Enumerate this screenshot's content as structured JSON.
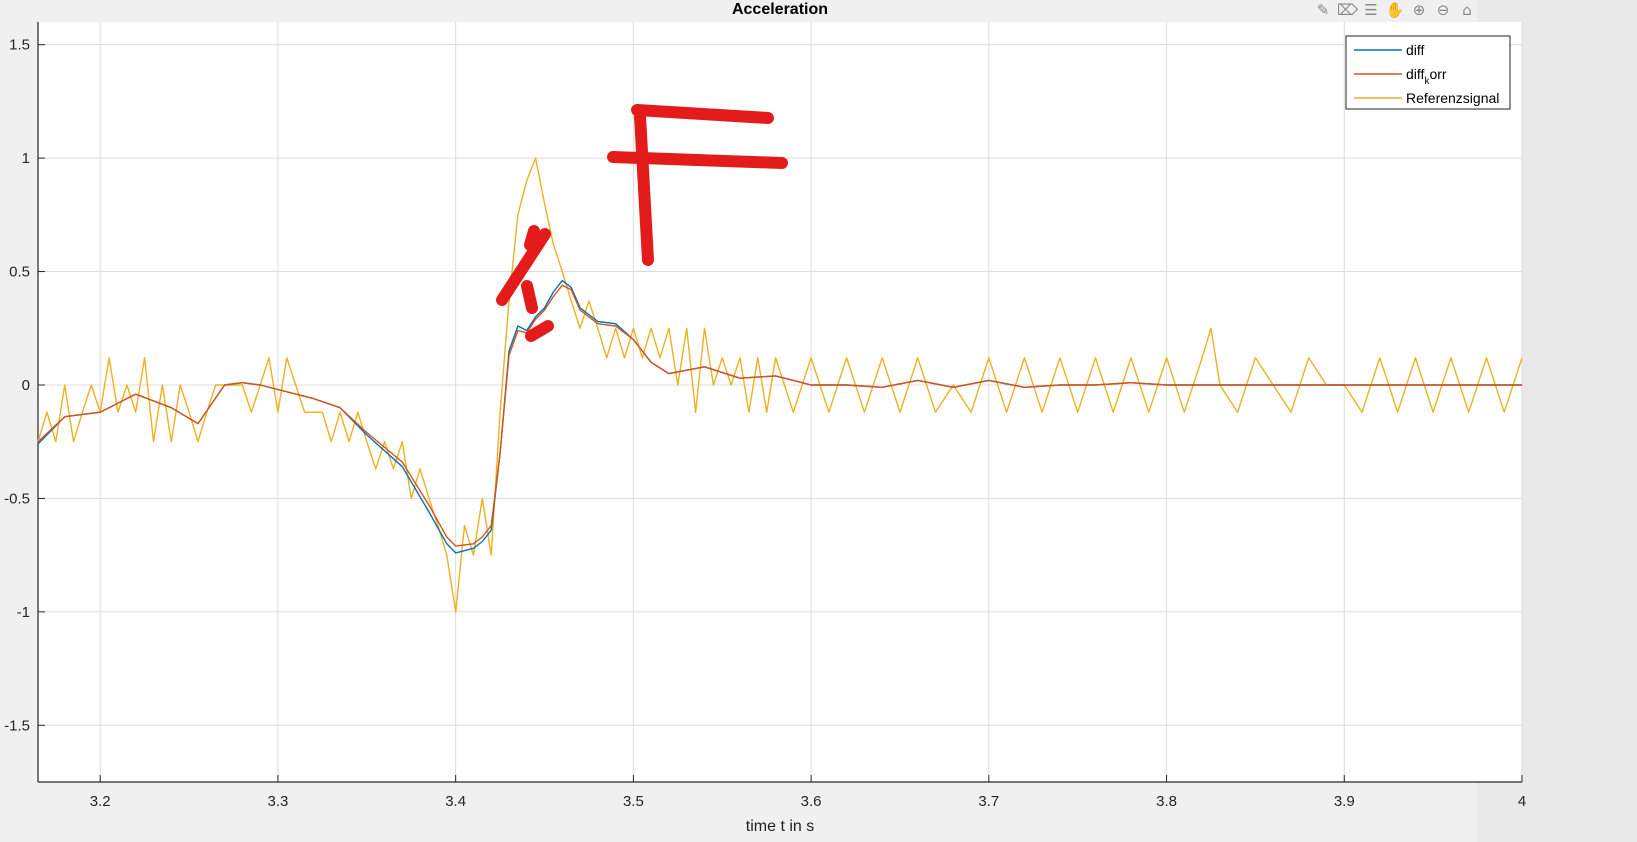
{
  "figure": {
    "toolbar": [
      {
        "name": "edit-plot-icon",
        "glyph": "✎"
      },
      {
        "name": "brush-icon",
        "glyph": "⌦"
      },
      {
        "name": "data-tips-icon",
        "glyph": "☰"
      },
      {
        "name": "pan-icon",
        "glyph": "✋"
      },
      {
        "name": "zoom-in-icon",
        "glyph": "⊕"
      },
      {
        "name": "zoom-out-icon",
        "glyph": "⊖"
      },
      {
        "name": "home-icon",
        "glyph": "⌂"
      }
    ]
  },
  "chart_data": {
    "type": "line",
    "title": "Acceleration",
    "xlabel": "time t in s",
    "ylabel": "",
    "xlim": [
      3.165,
      4.0
    ],
    "ylim": [
      -1.75,
      1.6
    ],
    "xticks": [
      3.2,
      3.3,
      3.4,
      3.5,
      3.6,
      3.7,
      3.8,
      3.9,
      4.0
    ],
    "xtick_labels": [
      "3.2",
      "3.3",
      "3.4",
      "3.5",
      "3.6",
      "3.7",
      "3.8",
      "3.9",
      "4"
    ],
    "yticks": [
      -1.5,
      -1,
      -0.5,
      0,
      0.5,
      1,
      1.5
    ],
    "ytick_labels": [
      "-1.5",
      "-1",
      "-0.5",
      "0",
      "0.5",
      "1",
      "1.5"
    ],
    "grid": true,
    "legend_position": "top-right",
    "colors": {
      "diff": "#0072BD",
      "diff_korr": "#D95319",
      "ref": "#EDB120",
      "annotation": "#e31b1b"
    },
    "legend": [
      {
        "label": "diff",
        "subscript": "",
        "rest": ""
      },
      {
        "label": "diff",
        "subscript": "k",
        "rest": "orr"
      },
      {
        "label": "Referenzsignal",
        "subscript": "",
        "rest": ""
      }
    ],
    "series": [
      {
        "name": "diff",
        "key": "diff",
        "x": [
          3.165,
          3.18,
          3.2,
          3.22,
          3.24,
          3.255,
          3.27,
          3.28,
          3.29,
          3.3,
          3.31,
          3.32,
          3.335,
          3.35,
          3.37,
          3.385,
          3.395,
          3.4,
          3.41,
          3.415,
          3.42,
          3.425,
          3.43,
          3.435,
          3.44,
          3.445,
          3.45,
          3.455,
          3.46,
          3.465,
          3.47,
          3.48,
          3.49,
          3.5,
          3.51,
          3.52,
          3.54,
          3.56,
          3.58,
          3.6,
          3.62,
          3.64,
          3.66,
          3.68,
          3.7,
          3.72,
          3.74,
          3.76,
          3.78,
          3.8,
          3.85,
          3.9,
          3.95,
          4.0
        ],
        "y": [
          -0.26,
          -0.14,
          -0.12,
          -0.04,
          -0.1,
          -0.17,
          0.0,
          0.01,
          0.0,
          -0.02,
          -0.04,
          -0.06,
          -0.1,
          -0.22,
          -0.36,
          -0.56,
          -0.7,
          -0.74,
          -0.72,
          -0.69,
          -0.64,
          -0.3,
          0.15,
          0.26,
          0.24,
          0.3,
          0.34,
          0.41,
          0.46,
          0.43,
          0.34,
          0.28,
          0.27,
          0.2,
          0.1,
          0.05,
          0.08,
          0.03,
          0.04,
          0.0,
          0.0,
          -0.01,
          0.02,
          -0.01,
          0.02,
          -0.01,
          0.0,
          0.0,
          0.01,
          0.0,
          0.0,
          0.0,
          0.0,
          0.0
        ]
      },
      {
        "name": "diff_korr",
        "key": "diff_korr",
        "x": [
          3.165,
          3.18,
          3.2,
          3.22,
          3.24,
          3.255,
          3.27,
          3.28,
          3.29,
          3.3,
          3.31,
          3.32,
          3.335,
          3.35,
          3.37,
          3.385,
          3.395,
          3.4,
          3.41,
          3.415,
          3.42,
          3.425,
          3.43,
          3.435,
          3.44,
          3.445,
          3.45,
          3.455,
          3.46,
          3.465,
          3.47,
          3.48,
          3.49,
          3.5,
          3.51,
          3.52,
          3.54,
          3.56,
          3.58,
          3.6,
          3.62,
          3.64,
          3.66,
          3.68,
          3.7,
          3.72,
          3.74,
          3.76,
          3.78,
          3.8,
          3.85,
          3.9,
          3.95,
          4.0
        ],
        "y": [
          -0.25,
          -0.14,
          -0.12,
          -0.04,
          -0.1,
          -0.17,
          0.0,
          0.01,
          0.0,
          -0.02,
          -0.04,
          -0.06,
          -0.1,
          -0.21,
          -0.34,
          -0.53,
          -0.67,
          -0.71,
          -0.7,
          -0.67,
          -0.62,
          -0.3,
          0.13,
          0.24,
          0.23,
          0.29,
          0.33,
          0.39,
          0.44,
          0.42,
          0.33,
          0.27,
          0.26,
          0.2,
          0.1,
          0.05,
          0.08,
          0.03,
          0.04,
          0.0,
          0.0,
          -0.01,
          0.02,
          -0.01,
          0.02,
          -0.01,
          0.0,
          0.0,
          0.01,
          0.0,
          0.0,
          0.0,
          0.0,
          0.0
        ]
      },
      {
        "name": "Referenzsignal",
        "key": "ref",
        "x": [
          3.165,
          3.17,
          3.175,
          3.18,
          3.185,
          3.19,
          3.195,
          3.2,
          3.205,
          3.21,
          3.215,
          3.22,
          3.225,
          3.23,
          3.235,
          3.24,
          3.245,
          3.25,
          3.255,
          3.26,
          3.265,
          3.27,
          3.275,
          3.28,
          3.285,
          3.29,
          3.295,
          3.3,
          3.305,
          3.31,
          3.315,
          3.32,
          3.325,
          3.33,
          3.335,
          3.34,
          3.345,
          3.35,
          3.355,
          3.36,
          3.365,
          3.37,
          3.375,
          3.38,
          3.385,
          3.39,
          3.395,
          3.4,
          3.405,
          3.41,
          3.415,
          3.42,
          3.425,
          3.43,
          3.435,
          3.44,
          3.445,
          3.45,
          3.455,
          3.46,
          3.465,
          3.47,
          3.475,
          3.48,
          3.485,
          3.49,
          3.495,
          3.5,
          3.505,
          3.51,
          3.515,
          3.52,
          3.525,
          3.53,
          3.535,
          3.54,
          3.545,
          3.55,
          3.555,
          3.56,
          3.565,
          3.57,
          3.575,
          3.58,
          3.59,
          3.6,
          3.61,
          3.62,
          3.63,
          3.64,
          3.65,
          3.66,
          3.67,
          3.68,
          3.69,
          3.7,
          3.71,
          3.72,
          3.73,
          3.74,
          3.75,
          3.76,
          3.77,
          3.78,
          3.79,
          3.8,
          3.81,
          3.82,
          3.825,
          3.83,
          3.84,
          3.85,
          3.86,
          3.87,
          3.88,
          3.89,
          3.9,
          3.91,
          3.92,
          3.93,
          3.94,
          3.95,
          3.96,
          3.97,
          3.98,
          3.99,
          4.0
        ],
        "y": [
          -0.25,
          -0.12,
          -0.25,
          0.0,
          -0.25,
          -0.12,
          0.0,
          -0.12,
          0.12,
          -0.12,
          0.0,
          -0.12,
          0.12,
          -0.25,
          0.0,
          -0.25,
          0.0,
          -0.12,
          -0.25,
          -0.12,
          0.0,
          0.0,
          0.0,
          0.0,
          -0.12,
          0.0,
          0.12,
          -0.12,
          0.12,
          0.0,
          -0.12,
          -0.12,
          -0.12,
          -0.25,
          -0.12,
          -0.25,
          -0.12,
          -0.25,
          -0.37,
          -0.25,
          -0.37,
          -0.25,
          -0.5,
          -0.37,
          -0.5,
          -0.62,
          -0.75,
          -1.0,
          -0.62,
          -0.75,
          -0.5,
          -0.75,
          -0.12,
          0.37,
          0.75,
          0.9,
          1.0,
          0.8,
          0.62,
          0.5,
          0.37,
          0.25,
          0.37,
          0.25,
          0.12,
          0.25,
          0.12,
          0.25,
          0.12,
          0.25,
          0.12,
          0.25,
          0.0,
          0.25,
          -0.12,
          0.25,
          0.0,
          0.12,
          0.0,
          0.12,
          -0.12,
          0.12,
          -0.12,
          0.12,
          -0.12,
          0.12,
          -0.12,
          0.12,
          -0.12,
          0.12,
          -0.12,
          0.12,
          -0.12,
          0.0,
          -0.12,
          0.12,
          -0.12,
          0.12,
          -0.12,
          0.12,
          -0.12,
          0.12,
          -0.12,
          0.12,
          -0.12,
          0.12,
          -0.12,
          0.12,
          0.25,
          0.0,
          -0.12,
          0.12,
          0.0,
          -0.12,
          0.12,
          0.0,
          0.0,
          -0.12,
          0.12,
          -0.12,
          0.12,
          -0.12,
          0.12,
          -0.12,
          0.12,
          -0.12,
          0.12
        ]
      }
    ]
  }
}
